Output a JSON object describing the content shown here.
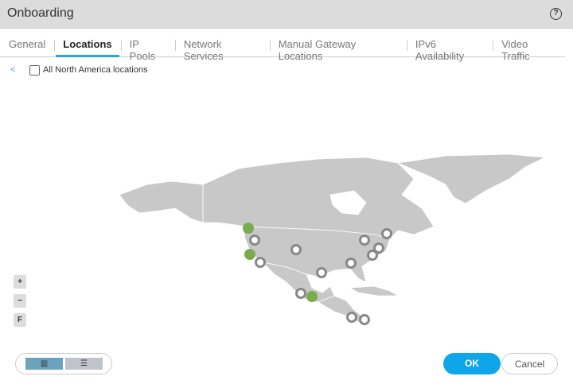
{
  "header": {
    "title": "Onboarding",
    "help_icon": "question-circle-icon"
  },
  "tabs": [
    {
      "label": "General"
    },
    {
      "label": "Locations",
      "active": true
    },
    {
      "label": "IP Pools"
    },
    {
      "label": "Network Services"
    },
    {
      "label": "Manual Gateway Locations"
    },
    {
      "label": "IPv6 Availability"
    },
    {
      "label": "Video Traffic"
    }
  ],
  "toolbar": {
    "back_label": "<",
    "select_all_label": "All North America locations",
    "select_all_checked": false
  },
  "map": {
    "land_color": "#c8c8c8",
    "selected_color": "#7aab4f",
    "unselected_color": "#888888",
    "markers": [
      "selected",
      "unselected",
      "selected",
      "unselected",
      "unselected",
      "unselected",
      "unselected",
      "unselected",
      "unselected",
      "unselected",
      "unselected",
      "unselected",
      "selected",
      "unselected",
      "unselected"
    ]
  },
  "zoom": {
    "in_label": "+",
    "out_label": "−",
    "fit_label": "F"
  },
  "view_toggle": {
    "map_icon": "map-icon",
    "list_icon": "list-icon",
    "active": "map"
  },
  "footer": {
    "ok_label": "OK",
    "cancel_label": "Cancel",
    "ok_color": "#0ea5e9"
  }
}
